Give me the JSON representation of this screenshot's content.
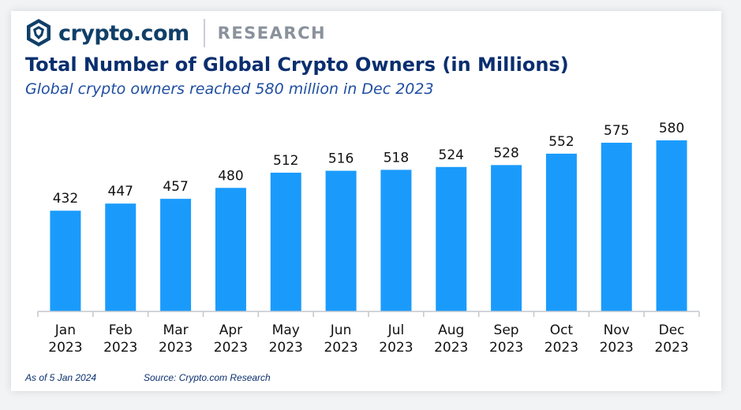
{
  "header": {
    "brand": "crypto.com",
    "section": "RESEARCH",
    "logo_icon": "crypto-lion-shield-icon"
  },
  "colors": {
    "bar": "#1a9bfc",
    "title": "#0a2f6f",
    "subtitle": "#1f4ea1",
    "brand": "#103f68",
    "axis": "#c3c7cd"
  },
  "chart_data": {
    "type": "bar",
    "title": "Total Number of Global Crypto Owners (in Millions)",
    "subtitle": "Global crypto owners reached 580 million in Dec 2023",
    "categories": [
      "Jan",
      "Feb",
      "Mar",
      "Apr",
      "May",
      "Jun",
      "Jul",
      "Aug",
      "Sep",
      "Oct",
      "Nov",
      "Dec"
    ],
    "year_labels": [
      "2023",
      "2023",
      "2023",
      "2023",
      "2023",
      "2023",
      "2023",
      "2023",
      "2023",
      "2023",
      "2023",
      "2023"
    ],
    "values": [
      432,
      447,
      457,
      480,
      512,
      516,
      518,
      524,
      528,
      552,
      575,
      580
    ],
    "data_labels": true,
    "ylim": [
      220,
      590
    ],
    "grid": false,
    "legend": "none"
  },
  "footer": {
    "as_of": "As of 5 Jan 2024",
    "source": "Source: Crypto.com Research"
  }
}
